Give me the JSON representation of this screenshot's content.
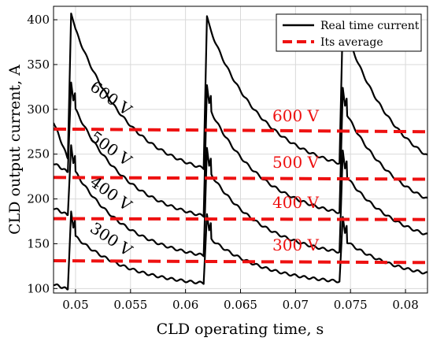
{
  "chart_data": {
    "type": "line",
    "xlabel": "CLD operating time, s",
    "ylabel": "CLD output current, A",
    "xlim": [
      0.048,
      0.082
    ],
    "ylim": [
      95,
      415
    ],
    "xticks": [
      0.05,
      0.055,
      0.06,
      0.065,
      0.07,
      0.075,
      0.08
    ],
    "xtick_labels": [
      "0.05",
      "0.055",
      "0.06",
      "0.065",
      "0.07",
      "0.075",
      "0.08"
    ],
    "yticks": [
      100,
      150,
      200,
      250,
      300,
      350,
      400
    ],
    "ytick_labels": [
      "100",
      "150",
      "200",
      "250",
      "300",
      "350",
      "400"
    ],
    "grid": true,
    "legend": {
      "placement": "top-right",
      "entries": [
        {
          "label": "Real time current",
          "style": "solid",
          "color": "#000000"
        },
        {
          "label": "Its average",
          "style": "dashed",
          "color": "#ee1111"
        }
      ]
    },
    "series": [
      {
        "kind": "real",
        "voltage": "600 V",
        "color": "#000000",
        "t0": 0.0493,
        "peak": 407,
        "spike": 0,
        "x": [
          0.048,
          0.0493,
          0.0615,
          0.0617,
          0.0741,
          0.082
        ],
        "y": [
          286,
          245,
          226,
          237,
          240,
          248
        ]
      },
      {
        "kind": "real",
        "voltage": "500 V",
        "color": "#000000",
        "t0": 0.0493,
        "peak": 330,
        "spike": 12,
        "x": [
          0.048,
          0.0493,
          0.0615,
          0.0741,
          0.082
        ],
        "y": [
          240,
          230,
          181,
          185,
          200
        ]
      },
      {
        "kind": "real",
        "voltage": "400 V",
        "color": "#000000",
        "t0": 0.0493,
        "peak": 260,
        "spike": 12,
        "x": [
          0.048,
          0.0493,
          0.0615,
          0.0741,
          0.082
        ],
        "y": [
          190,
          182,
          137,
          141,
          160
        ]
      },
      {
        "kind": "real",
        "voltage": "300 V",
        "color": "#000000",
        "t0": 0.0493,
        "peak": 186,
        "spike": 10,
        "x": [
          0.048,
          0.0493,
          0.0615,
          0.0741,
          0.082
        ],
        "y": [
          105,
          99,
          106,
          108,
          117
        ]
      },
      {
        "kind": "average",
        "voltage": "600 V",
        "color": "#ee1111",
        "x": [
          0.048,
          0.082
        ],
        "y": [
          278,
          275
        ]
      },
      {
        "kind": "average",
        "voltage": "500 V",
        "color": "#ee1111",
        "x": [
          0.048,
          0.082
        ],
        "y": [
          224,
          222
        ]
      },
      {
        "kind": "average",
        "voltage": "400 V",
        "color": "#ee1111",
        "x": [
          0.048,
          0.082
        ],
        "y": [
          178,
          177
        ]
      },
      {
        "kind": "average",
        "voltage": "300 V",
        "color": "#ee1111",
        "x": [
          0.048,
          0.082
        ],
        "y": [
          131,
          129
        ]
      }
    ],
    "annotations_black": [
      "600 V",
      "500 V",
      "400 V",
      "300 V"
    ],
    "annotations_red": [
      "600 V",
      "500 V",
      "400 V",
      "300 V"
    ]
  }
}
